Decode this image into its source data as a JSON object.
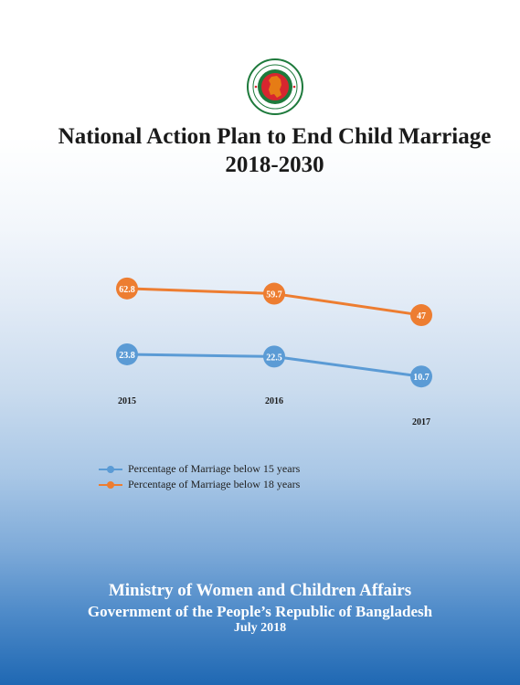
{
  "title": {
    "line1": "National Action Plan to End Child Marriage",
    "line2": "2018-2030"
  },
  "seal": {
    "icon": "bangladesh-government-seal",
    "colors": {
      "ring": "#1e7a3c",
      "map": "#d7262f",
      "background": "#ffffff"
    }
  },
  "chart_data": {
    "type": "line",
    "x": [
      "2015",
      "2016",
      "2017"
    ],
    "series": [
      {
        "name": "Percentage of Marriage below 15 years",
        "values": [
          23.8,
          22.5,
          10.7
        ],
        "labels": [
          "23.8",
          "22.5",
          "10.7"
        ],
        "color": "#5b9bd5"
      },
      {
        "name": "Percentage of Marriage below 18 years",
        "values": [
          62.8,
          59.7,
          47
        ],
        "labels": [
          "62.8",
          "59.7",
          "47"
        ],
        "color": "#ed7d31"
      }
    ],
    "legend": "bottom-left",
    "grid": false
  },
  "footer": {
    "ministry": "Ministry of Women and Children Affairs",
    "government": "Government of the People’s Republic of Bangladesh",
    "date": "July 2018"
  }
}
